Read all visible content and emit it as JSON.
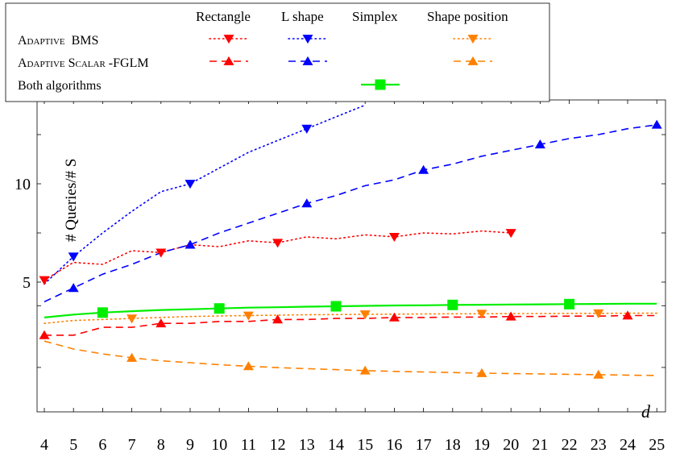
{
  "chart_data": {
    "type": "line",
    "xlabel": "d",
    "ylabel": "# Queries/# S",
    "xlim": [
      4,
      25
    ],
    "ylim": [
      1.7,
      15
    ],
    "x_ticks": [
      "4",
      "5",
      "6",
      "7",
      "8",
      "9",
      "10",
      "11",
      "12",
      "13",
      "14",
      "15",
      "16",
      "17",
      "18",
      "19",
      "20",
      "21",
      "22",
      "23",
      "24",
      "25"
    ],
    "y_ticks": [
      "5",
      "10"
    ],
    "grid": false,
    "legend_position": "top-left (above plot)",
    "legend": {
      "columns": [
        "Rectangle",
        "L shape",
        "Simplex",
        "Shape position"
      ],
      "rows": [
        {
          "label_caps": "Adaptive",
          "label_rest": "BMS"
        },
        {
          "label_caps": "Adaptive Scalar",
          "label_rest": "-FGLM"
        },
        {
          "label_caps": "",
          "label_rest": "Both algorithms"
        }
      ]
    },
    "series": [
      {
        "name": "Adaptive BMS – Rectangle",
        "color": "#ff0000",
        "dash": "dotted",
        "marker": "triangle-down",
        "x": [
          4,
          5,
          6,
          7,
          8,
          9,
          10,
          11,
          12,
          13,
          14,
          15,
          16,
          17,
          18,
          19,
          20
        ],
        "y": [
          5.1,
          6.0,
          5.9,
          6.6,
          6.5,
          6.9,
          6.8,
          7.1,
          7.0,
          7.3,
          7.2,
          7.4,
          7.3,
          7.5,
          7.45,
          7.6,
          7.5
        ],
        "markers_at": [
          4,
          8,
          12,
          16,
          20
        ]
      },
      {
        "name": "Adaptive BMS – L shape",
        "color": "#0000ff",
        "dash": "dotted",
        "marker": "triangle-down",
        "x": [
          4,
          5,
          6,
          7,
          8,
          9,
          10,
          11,
          12,
          13,
          14,
          15
        ],
        "y": [
          4.9,
          6.3,
          7.5,
          8.6,
          9.6,
          10.0,
          10.8,
          11.6,
          12.2,
          12.8,
          13.4,
          14.0
        ],
        "markers_at": [
          5,
          9,
          13
        ]
      },
      {
        "name": "Adaptive BMS – Shape position",
        "color": "#ff8000",
        "dash": "dotted",
        "marker": "triangle-down",
        "x": [
          4,
          5,
          6,
          7,
          8,
          9,
          10,
          11,
          12,
          13,
          14,
          15,
          16,
          17,
          18,
          19,
          20,
          21,
          22,
          23,
          24,
          25
        ],
        "y": [
          2.9,
          3.05,
          3.1,
          3.15,
          3.2,
          3.25,
          3.28,
          3.3,
          3.32,
          3.34,
          3.35,
          3.36,
          3.37,
          3.38,
          3.39,
          3.39,
          3.4,
          3.4,
          3.41,
          3.41,
          3.42,
          3.42
        ],
        "markers_at": [
          7,
          11,
          15,
          19,
          23
        ]
      },
      {
        "name": "Adaptive Scalar-FGLM – Rectangle",
        "color": "#ff0000",
        "dash": "dashed",
        "marker": "triangle-up",
        "x": [
          4,
          5,
          6,
          7,
          8,
          9,
          10,
          11,
          12,
          13,
          14,
          15,
          16,
          17,
          18,
          19,
          20,
          21,
          22,
          23,
          24,
          25
        ],
        "y": [
          2.3,
          2.3,
          2.7,
          2.7,
          2.9,
          2.9,
          3.0,
          3.0,
          3.1,
          3.1,
          3.15,
          3.15,
          3.2,
          3.2,
          3.22,
          3.22,
          3.25,
          3.25,
          3.27,
          3.27,
          3.3,
          3.3
        ],
        "markers_at": [
          4,
          8,
          12,
          16,
          20,
          24
        ]
      },
      {
        "name": "Adaptive Scalar-FGLM – L shape",
        "color": "#0000ff",
        "dash": "dashed",
        "marker": "triangle-up",
        "x": [
          4,
          5,
          6,
          7,
          8,
          9,
          10,
          11,
          12,
          13,
          14,
          15,
          16,
          17,
          18,
          19,
          20,
          21,
          22,
          23,
          24,
          25
        ],
        "y": [
          4.0,
          4.7,
          5.4,
          5.9,
          6.5,
          6.9,
          7.5,
          8.0,
          8.5,
          9.0,
          9.4,
          9.9,
          10.2,
          10.7,
          11.0,
          11.4,
          11.7,
          12.0,
          12.3,
          12.5,
          12.8,
          13.0
        ],
        "markers_at": [
          5,
          9,
          13,
          17,
          21,
          25
        ]
      },
      {
        "name": "Adaptive Scalar-FGLM – Shape position",
        "color": "#ff8000",
        "dash": "dashed",
        "marker": "triangle-up",
        "x": [
          4,
          5,
          6,
          7,
          8,
          9,
          10,
          11,
          12,
          13,
          14,
          15,
          16,
          17,
          18,
          19,
          20,
          21,
          22,
          23,
          24,
          25
        ],
        "y": [
          2.0,
          1.6,
          1.35,
          1.15,
          1.0,
          0.9,
          0.8,
          0.72,
          0.65,
          0.6,
          0.55,
          0.5,
          0.46,
          0.43,
          0.4,
          0.37,
          0.35,
          0.33,
          0.31,
          0.29,
          0.27,
          0.25
        ],
        "markers_at": [
          7,
          11,
          15,
          19,
          23
        ]
      },
      {
        "name": "Both algorithms – Simplex",
        "color": "#00ee00",
        "dash": "solid",
        "marker": "square",
        "x": [
          4,
          5,
          6,
          7,
          8,
          9,
          10,
          11,
          12,
          13,
          14,
          15,
          16,
          17,
          18,
          19,
          20,
          21,
          22,
          23,
          24,
          25
        ],
        "y": [
          3.2,
          3.35,
          3.45,
          3.52,
          3.58,
          3.62,
          3.66,
          3.7,
          3.72,
          3.75,
          3.77,
          3.79,
          3.81,
          3.82,
          3.84,
          3.85,
          3.86,
          3.87,
          3.88,
          3.89,
          3.9,
          3.9
        ],
        "markers_at": [
          6,
          10,
          14,
          18,
          22
        ]
      }
    ]
  }
}
